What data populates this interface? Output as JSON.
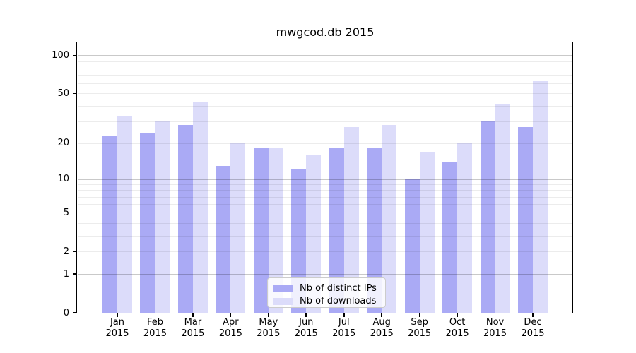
{
  "title": "mwgcod.db 2015",
  "chart_data": {
    "type": "bar",
    "title": "mwgcod.db 2015",
    "categories": [
      "Jan",
      "Feb",
      "Mar",
      "Apr",
      "May",
      "Jun",
      "Jul",
      "Aug",
      "Sep",
      "Oct",
      "Nov",
      "Dec"
    ],
    "category_year_label": "2015",
    "series": [
      {
        "name": "Nb of distinct IPs",
        "color": "#aaaaf5",
        "values": [
          23,
          24,
          28,
          13,
          18,
          12,
          18,
          18,
          10,
          14,
          30,
          27
        ]
      },
      {
        "name": "Nb of downloads",
        "color": "#dcdcfa",
        "values": [
          33,
          30,
          43,
          20,
          18,
          16,
          27,
          28,
          17,
          20,
          41,
          63
        ]
      }
    ],
    "yscale": "log10(1+x)",
    "ylim": [
      0,
      125
    ],
    "yticks": [
      100,
      50,
      20,
      10,
      5,
      2,
      1,
      0
    ],
    "grid": {
      "on": true,
      "minor_lines": [
        2,
        3,
        4,
        5,
        6,
        7,
        8,
        9,
        20,
        30,
        40,
        50,
        60,
        70,
        80,
        90
      ],
      "major_lines": [
        1,
        10,
        100
      ],
      "minor_color": "#ebebeb",
      "major_color": "#c9c9c9"
    },
    "legend_position": "lower center",
    "xlabel": "",
    "ylabel": ""
  },
  "legend": {
    "items": [
      {
        "label": "Nb of distinct IPs",
        "color": "#aaaaf5"
      },
      {
        "label": "Nb of downloads",
        "color": "#dcdcfa"
      }
    ]
  },
  "colors": {
    "background": "#ffffff",
    "axis": "#000000",
    "bar_dark": "#aaaaf5",
    "bar_light": "#dcdcfa"
  }
}
